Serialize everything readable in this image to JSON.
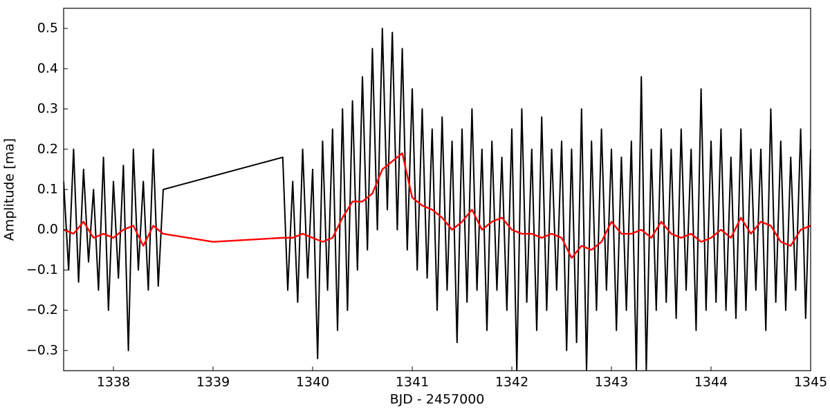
{
  "chart_data": {
    "type": "line",
    "xlabel": "BJD - 2457000",
    "ylabel": "Amplitude [ma]",
    "xlim": [
      1337.5,
      1345
    ],
    "ylim": [
      -0.35,
      0.55
    ],
    "xticks": [
      1338,
      1339,
      1340,
      1341,
      1342,
      1343,
      1344,
      1345
    ],
    "yticks": [
      {
        "value": -0.3,
        "label": "−0.3"
      },
      {
        "value": -0.2,
        "label": "−0.2"
      },
      {
        "value": -0.1,
        "label": "−0.1"
      },
      {
        "value": 0,
        "label": "0.0"
      },
      0.1,
      0.2,
      0.3,
      0.4,
      0.5
    ],
    "series": [
      {
        "color": "#000000",
        "x": [
          1337.5,
          1337.55,
          1337.6,
          1337.65,
          1337.7,
          1337.75,
          1337.8,
          1337.85,
          1337.9,
          1337.95,
          1338.0,
          1338.05,
          1338.1,
          1338.15,
          1338.2,
          1338.25,
          1338.3,
          1338.35,
          1338.4,
          1338.45,
          1338.5,
          1339.7,
          1339.75,
          1339.8,
          1339.85,
          1339.9,
          1339.95,
          1340.0,
          1340.05,
          1340.1,
          1340.15,
          1340.2,
          1340.25,
          1340.3,
          1340.35,
          1340.4,
          1340.45,
          1340.5,
          1340.55,
          1340.6,
          1340.65,
          1340.7,
          1340.75,
          1340.8,
          1340.85,
          1340.9,
          1340.95,
          1341.0,
          1341.05,
          1341.1,
          1341.15,
          1341.2,
          1341.25,
          1341.3,
          1341.35,
          1341.4,
          1341.45,
          1341.5,
          1341.55,
          1341.6,
          1341.65,
          1341.7,
          1341.75,
          1341.8,
          1341.85,
          1341.9,
          1341.95,
          1342.0,
          1342.05,
          1342.1,
          1342.15,
          1342.2,
          1342.25,
          1342.3,
          1342.35,
          1342.4,
          1342.45,
          1342.5,
          1342.55,
          1342.6,
          1342.65,
          1342.7,
          1342.75,
          1342.8,
          1342.85,
          1342.9,
          1342.95,
          1343.0,
          1343.05,
          1343.1,
          1343.15,
          1343.2,
          1343.25,
          1343.3,
          1343.35,
          1343.4,
          1343.45,
          1343.5,
          1343.55,
          1343.6,
          1343.65,
          1343.7,
          1343.75,
          1343.8,
          1343.85,
          1343.9,
          1343.95,
          1344.0,
          1344.05,
          1344.1,
          1344.15,
          1344.2,
          1344.25,
          1344.3,
          1344.35,
          1344.4,
          1344.45,
          1344.5,
          1344.55,
          1344.6,
          1344.65,
          1344.7,
          1344.75,
          1344.8,
          1344.85,
          1344.9,
          1344.95,
          1345.0
        ],
        "values": [
          0.12,
          -0.1,
          0.2,
          -0.13,
          0.15,
          -0.08,
          0.1,
          -0.15,
          0.18,
          -0.2,
          0.12,
          -0.12,
          0.16,
          -0.3,
          0.2,
          -0.1,
          0.12,
          -0.15,
          0.2,
          -0.14,
          0.1,
          0.18,
          -0.15,
          0.12,
          -0.18,
          0.2,
          -0.12,
          0.15,
          -0.32,
          0.22,
          -0.15,
          0.25,
          -0.25,
          0.3,
          -0.2,
          0.32,
          -0.1,
          0.38,
          -0.05,
          0.45,
          0.0,
          0.5,
          0.05,
          0.49,
          0.0,
          0.45,
          -0.05,
          0.35,
          -0.1,
          0.3,
          -0.12,
          0.25,
          -0.2,
          0.28,
          -0.15,
          0.22,
          -0.28,
          0.25,
          -0.18,
          0.3,
          -0.15,
          0.2,
          -0.25,
          0.22,
          -0.15,
          0.18,
          -0.2,
          0.25,
          -0.35,
          0.3,
          -0.18,
          0.2,
          -0.25,
          0.28,
          -0.2,
          0.2,
          -0.15,
          0.22,
          -0.3,
          0.2,
          -0.28,
          0.3,
          -0.35,
          0.22,
          -0.2,
          0.25,
          -0.15,
          0.2,
          -0.25,
          0.18,
          -0.2,
          0.22,
          -0.35,
          0.38,
          -0.35,
          0.2,
          -0.2,
          0.25,
          -0.18,
          0.2,
          -0.22,
          0.25,
          -0.15,
          0.2,
          -0.25,
          0.35,
          -0.2,
          0.22,
          -0.18,
          0.25,
          -0.2,
          0.18,
          -0.22,
          0.25,
          -0.2,
          0.2,
          -0.15,
          0.2,
          -0.25,
          0.3,
          -0.18,
          0.22,
          -0.2,
          0.18,
          -0.15,
          0.25,
          -0.22,
          0.2
        ]
      },
      {
        "color": "#ff0000",
        "x": [
          1337.5,
          1337.6,
          1337.7,
          1337.8,
          1337.9,
          1338.0,
          1338.1,
          1338.2,
          1338.3,
          1338.4,
          1338.5,
          1339.0,
          1339.7,
          1339.8,
          1339.9,
          1340.0,
          1340.1,
          1340.2,
          1340.3,
          1340.4,
          1340.5,
          1340.6,
          1340.7,
          1340.8,
          1340.9,
          1341.0,
          1341.1,
          1341.2,
          1341.3,
          1341.4,
          1341.5,
          1341.6,
          1341.7,
          1341.8,
          1341.9,
          1342.0,
          1342.1,
          1342.2,
          1342.3,
          1342.4,
          1342.5,
          1342.6,
          1342.7,
          1342.8,
          1342.9,
          1343.0,
          1343.1,
          1343.2,
          1343.3,
          1343.4,
          1343.5,
          1343.6,
          1343.7,
          1343.8,
          1343.9,
          1344.0,
          1344.1,
          1344.2,
          1344.3,
          1344.4,
          1344.5,
          1344.6,
          1344.7,
          1344.8,
          1344.9,
          1345.0
        ],
        "values": [
          0.0,
          -0.01,
          0.02,
          -0.02,
          -0.01,
          -0.02,
          0.0,
          0.01,
          -0.04,
          0.01,
          -0.01,
          -0.03,
          -0.02,
          -0.02,
          -0.01,
          -0.02,
          -0.03,
          -0.02,
          0.03,
          0.07,
          0.07,
          0.09,
          0.15,
          0.17,
          0.19,
          0.08,
          0.06,
          0.05,
          0.03,
          0.0,
          0.02,
          0.05,
          0.0,
          0.02,
          0.03,
          0.0,
          -0.01,
          -0.01,
          -0.02,
          -0.01,
          -0.02,
          -0.07,
          -0.04,
          -0.05,
          -0.03,
          0.02,
          -0.01,
          -0.01,
          0.0,
          -0.02,
          0.02,
          -0.01,
          -0.02,
          -0.01,
          -0.03,
          -0.02,
          0.0,
          -0.02,
          0.03,
          -0.01,
          0.02,
          0.01,
          -0.03,
          -0.04,
          0.0,
          0.01
        ]
      }
    ]
  }
}
